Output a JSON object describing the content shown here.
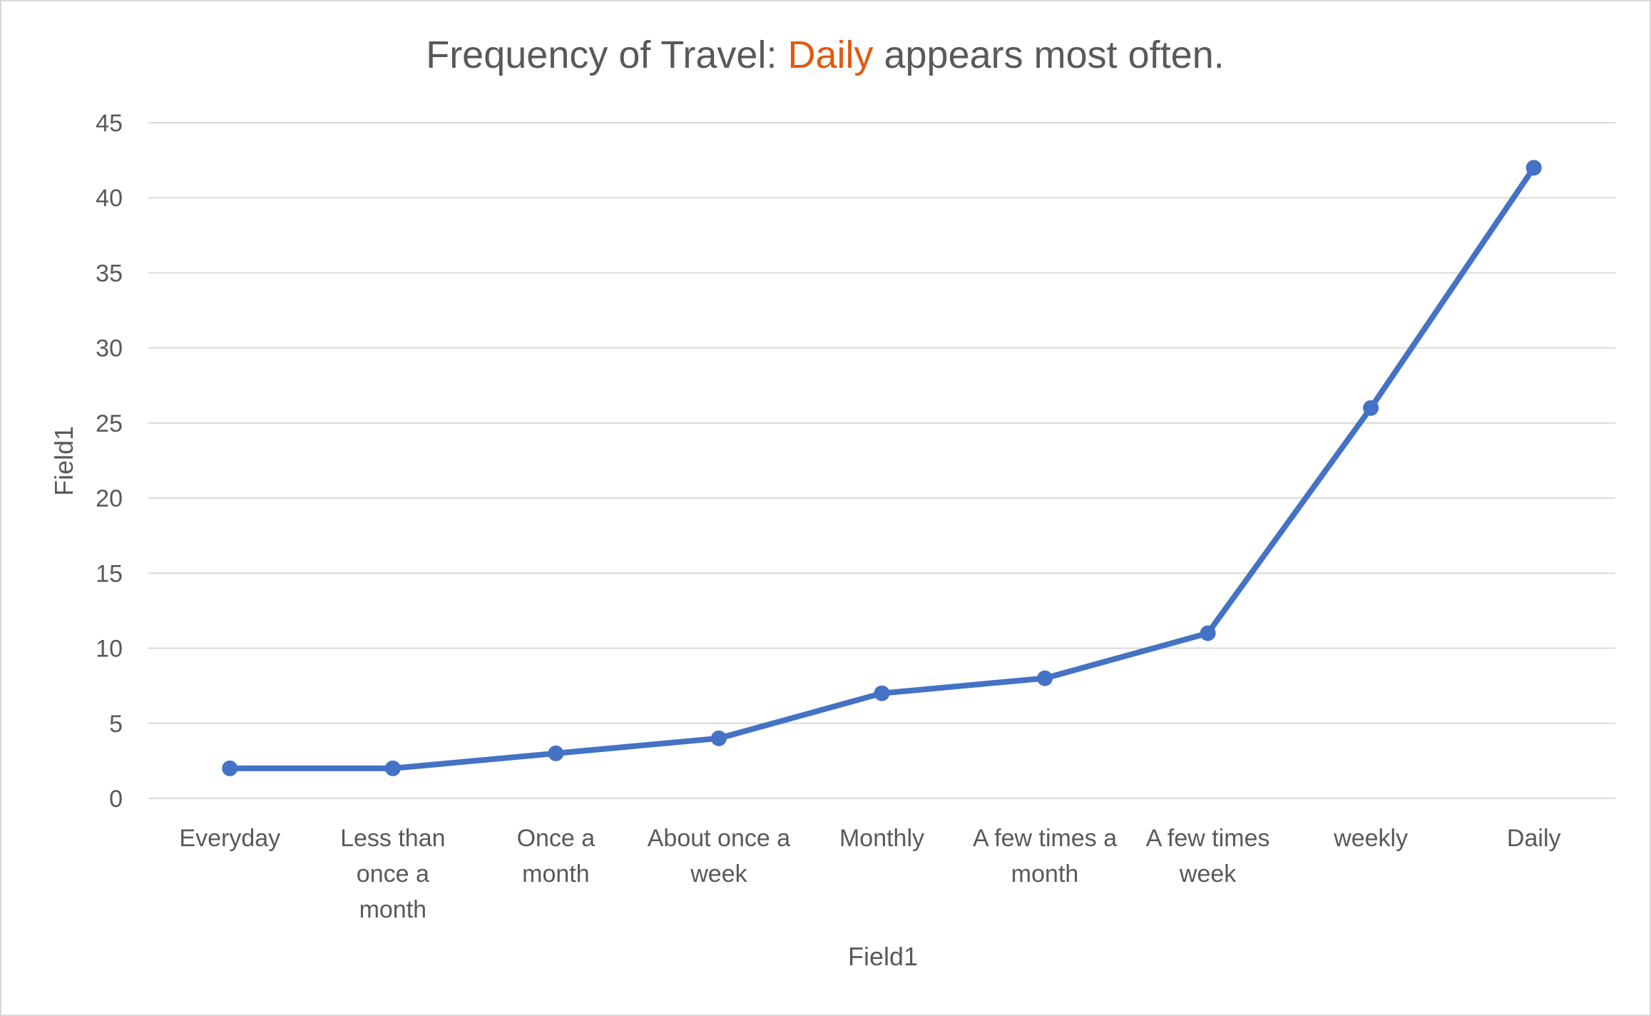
{
  "chart_data": {
    "type": "line",
    "title_parts": [
      {
        "text": "Frequency of Travel: ",
        "color": "#595959"
      },
      {
        "text": "Daily",
        "color": "#e05a10"
      },
      {
        "text": " appears most often.",
        "color": "#595959"
      }
    ],
    "categories": [
      [
        "Everyday"
      ],
      [
        "Less than",
        "once a",
        "month"
      ],
      [
        "Once a",
        "month"
      ],
      [
        "About once a",
        "week"
      ],
      [
        "Monthly"
      ],
      [
        "A few times a",
        "month"
      ],
      [
        "A few times",
        "week"
      ],
      [
        "weekly"
      ],
      [
        "Daily"
      ]
    ],
    "series": [
      {
        "values": [
          2,
          2,
          3,
          4,
          7,
          8,
          11,
          26,
          42
        ],
        "color": "#4472c4"
      }
    ],
    "xlabel": "Field1",
    "ylabel": "Field1",
    "ylim": [
      0,
      45
    ],
    "yticks": [
      0,
      5,
      10,
      15,
      20,
      25,
      30,
      35,
      40,
      45
    ],
    "grid": true,
    "gridline_color": "#d9d9d9",
    "legend": "none"
  }
}
